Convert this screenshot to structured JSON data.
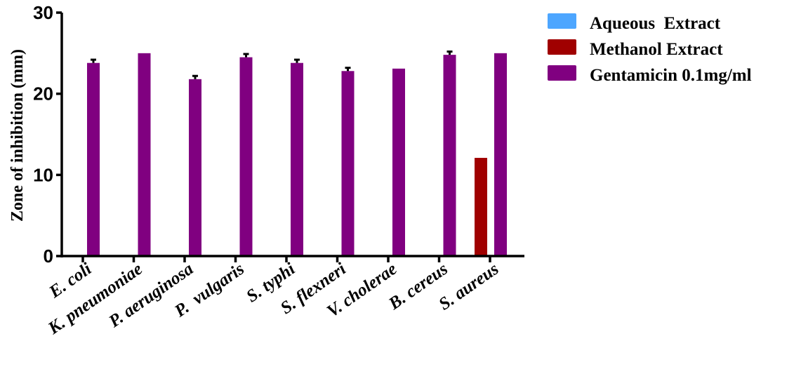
{
  "chart_data": {
    "type": "bar",
    "ylabel": "Zone of inhibition (mm)",
    "ylim": [
      0,
      30
    ],
    "yticks": [
      "0",
      "10",
      "20",
      "30"
    ],
    "grid": false,
    "legend_position": "top-right",
    "categories": [
      "E. coli",
      "K. pneumoniae",
      "P. aeruginosa",
      "P.  vulgaris",
      "S. typhi",
      "S. flexneri",
      "V. cholerae",
      "B. cereus",
      "S. aureus"
    ],
    "series": [
      {
        "name": "Aqueous  Extract",
        "color": "#4da6ff",
        "values": [
          0,
          0,
          0,
          0,
          0,
          0,
          0,
          0,
          0
        ],
        "errors": [
          0,
          0,
          0,
          0,
          0,
          0,
          0,
          0,
          0
        ]
      },
      {
        "name": "Methanol Extract",
        "color": "#a00000",
        "values": [
          0,
          0,
          0,
          0,
          0,
          0,
          0,
          0,
          12.1
        ],
        "errors": [
          0,
          0,
          0,
          0,
          0,
          0,
          0,
          0,
          0
        ]
      },
      {
        "name": "Gentamicin 0.1mg/ml",
        "color": "#800080",
        "values": [
          23.8,
          25.0,
          21.8,
          24.5,
          23.8,
          22.8,
          23.1,
          24.8,
          25.0
        ],
        "errors": [
          0.4,
          0,
          0.4,
          0.4,
          0.4,
          0.4,
          0,
          0.4,
          0
        ]
      }
    ]
  }
}
